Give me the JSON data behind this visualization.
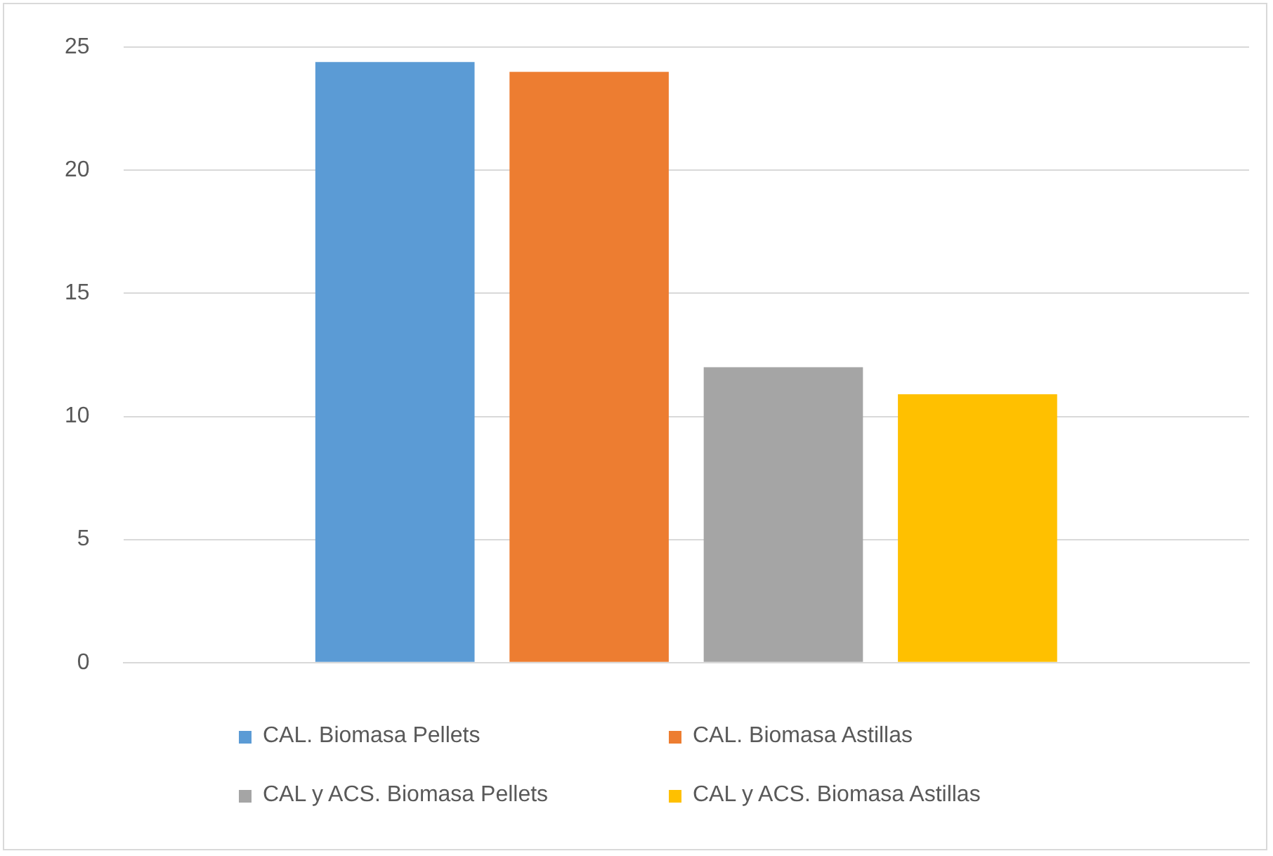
{
  "chart_data": {
    "type": "bar",
    "categories": [
      null
    ],
    "series": [
      {
        "name": "CAL. Biomasa Pellets",
        "color": "#5b9bd5",
        "values": [
          24.4
        ]
      },
      {
        "name": "CAL. Biomasa Astillas",
        "color": "#ed7d31",
        "values": [
          24.0
        ]
      },
      {
        "name": "CAL y ACS. Biomasa Pellets",
        "color": "#a5a5a5",
        "values": [
          12.0
        ]
      },
      {
        "name": "CAL y ACS. Biomasa Astillas",
        "color": "#ffc000",
        "values": [
          10.9
        ]
      }
    ],
    "ylim": [
      0,
      25
    ],
    "yticks": [
      0,
      5,
      10,
      15,
      20,
      25
    ],
    "grid": "y",
    "legend": "bottom"
  }
}
